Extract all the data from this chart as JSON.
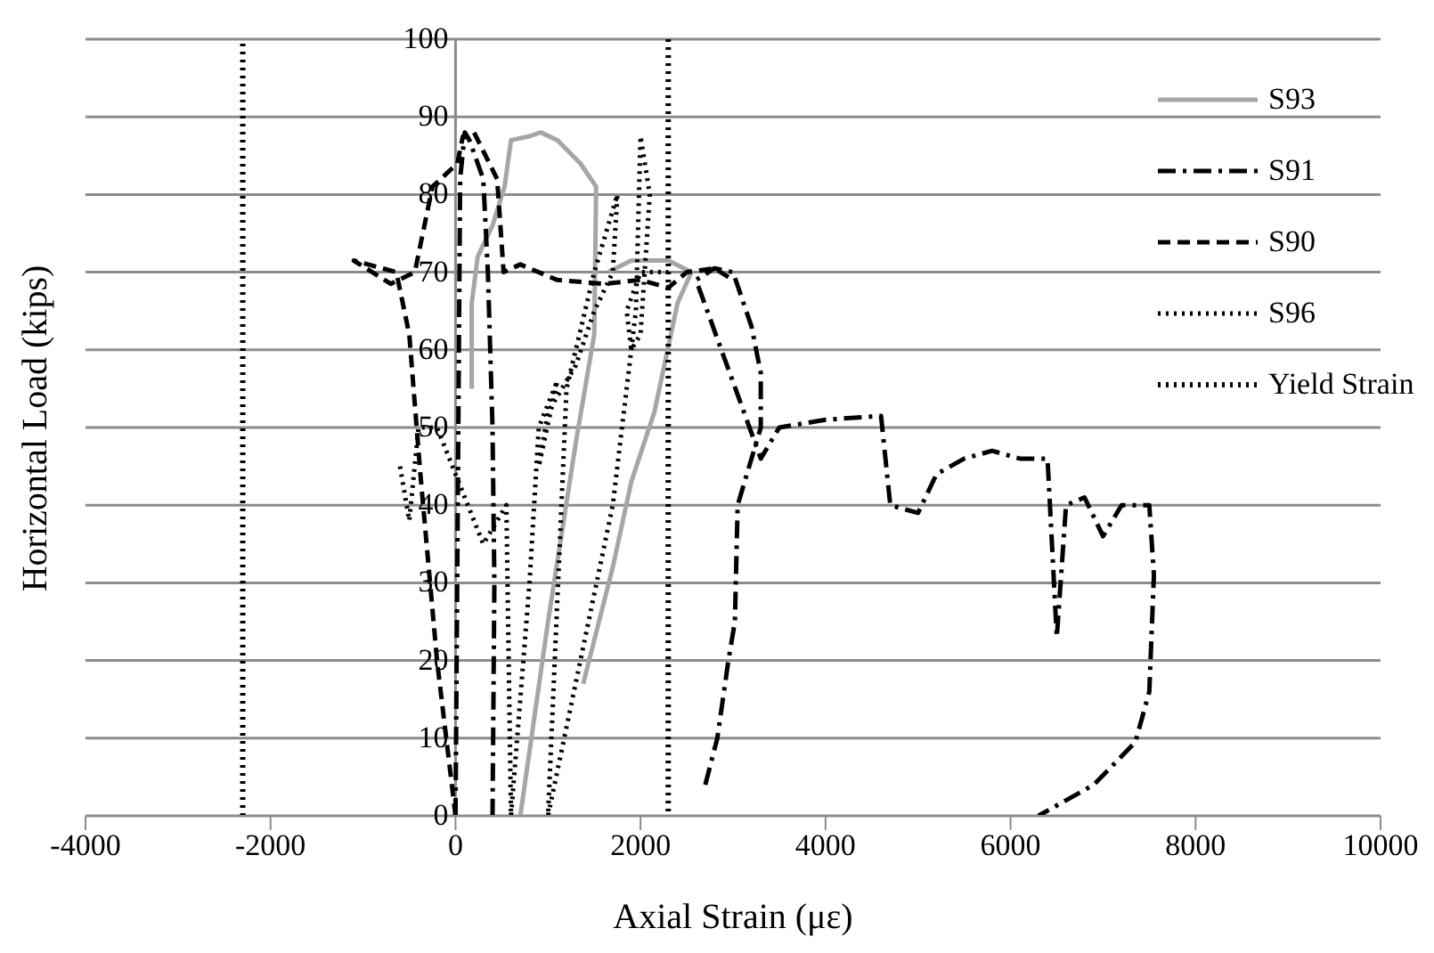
{
  "chart_data": {
    "type": "line",
    "xlabel": "Axial Strain (με)",
    "ylabel": "Horizontal Load (kips)",
    "xlim": [
      -4000,
      10000
    ],
    "xticks": [
      -4000,
      -2000,
      0,
      2000,
      4000,
      6000,
      8000,
      10000
    ],
    "ylim": [
      0,
      100
    ],
    "yticks": [
      0,
      10,
      20,
      30,
      40,
      50,
      60,
      70,
      80,
      90,
      100
    ],
    "grid": "y",
    "legend": "top right",
    "marker": "none",
    "series": [
      {
        "name": "S93",
        "color": "#a6a6a6",
        "line_style": "solid",
        "x": [
          700,
          1000,
          1300,
          1500,
          1520,
          1350,
          1100,
          920,
          800,
          600,
          530,
          400,
          240,
          175,
          175,
          1100,
          1380,
          1700,
          1900,
          2150,
          2400,
          2550,
          2300,
          1900,
          1650
        ],
        "values": [
          0,
          25,
          48,
          62,
          81,
          84,
          87,
          88,
          87.5,
          87,
          81,
          76,
          72,
          66,
          55,
          null,
          17,
          32,
          43,
          52,
          66,
          70,
          71.5,
          71.5,
          70
        ]
      },
      {
        "name": "S91",
        "color": "#000000",
        "line_style": "dashdot",
        "x": [
          0,
          50,
          100,
          150,
          300,
          350,
          400,
          420,
          400,
          2600,
          2700,
          2830,
          2950,
          3020,
          3050,
          3300,
          3300,
          3200,
          3000,
          2800,
          2600,
          3300,
          3500,
          4000,
          4600,
          4700,
          5000,
          5200,
          5500,
          5800,
          6100,
          6400,
          6500,
          6600,
          6800,
          7000,
          7200,
          7500,
          7550,
          7500,
          7350,
          6900,
          6300
        ],
        "values": [
          0,
          82,
          88,
          87,
          82,
          70,
          50,
          30,
          0,
          null,
          4,
          10,
          20,
          25,
          40,
          50,
          57,
          63,
          70,
          70.5,
          69,
          46,
          50,
          51,
          51.5,
          40,
          39,
          44,
          46,
          47,
          46,
          46,
          23,
          40,
          41,
          36,
          40,
          40,
          31,
          16,
          9.5,
          4,
          0
        ]
      },
      {
        "name": "S90",
        "color": "#000000",
        "line_style": "dashed",
        "x": [
          0,
          -200,
          -380,
          -500,
          -640,
          -1100,
          -700,
          -440,
          -250,
          20,
          80,
          200,
          450,
          520,
          700,
          1100,
          1600,
          2000,
          2300,
          2500,
          2800,
          3000
        ],
        "values": [
          0,
          20,
          44,
          62,
          70,
          71.5,
          68.5,
          70,
          81,
          84,
          87.5,
          88,
          82,
          70,
          71,
          69,
          68.5,
          69,
          68,
          70,
          70.5,
          69
        ]
      },
      {
        "name": "S96",
        "color": "#000000",
        "line_style": "dotted",
        "x": [
          -600,
          -500,
          -400,
          -200,
          300,
          550,
          600,
          800,
          900,
          1100,
          900,
          1000,
          1300,
          1500,
          1700,
          1750,
          1500,
          1300,
          1200,
          1000,
          1350,
          1700,
          1850,
          1950,
          2000,
          2100,
          2000,
          1900,
          1850,
          2000,
          2300
        ],
        "values": [
          45,
          38,
          50,
          50,
          35,
          40,
          0,
          30,
          50,
          56,
          45,
          52,
          58,
          65,
          70,
          80,
          70,
          60,
          55,
          0,
          20,
          40,
          55,
          65,
          87.5,
          80,
          62,
          60,
          65,
          70,
          70
        ]
      },
      {
        "name": "Yield Strain",
        "color": "#000000",
        "line_style": "dotted",
        "x": [
          -2300,
          -2300,
          0,
          2300,
          2300
        ],
        "values": [
          0,
          100,
          null,
          100,
          0
        ]
      }
    ]
  }
}
